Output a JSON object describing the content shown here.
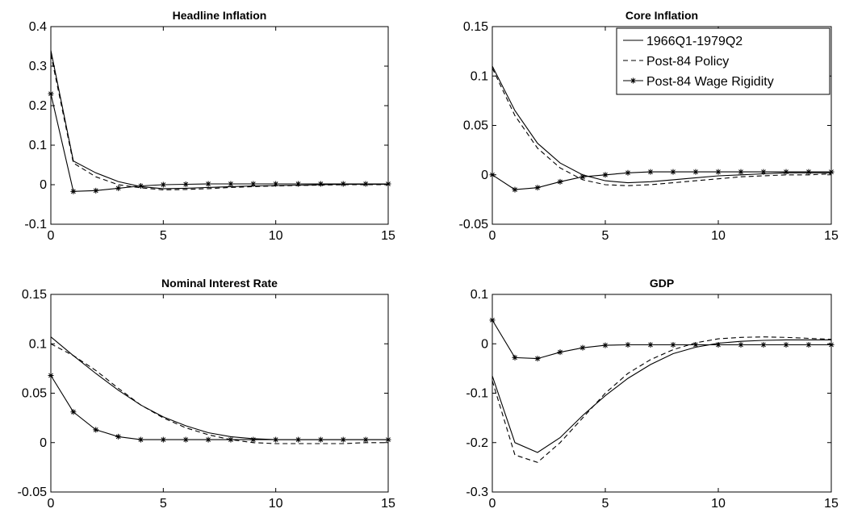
{
  "chart_data": [
    {
      "type": "line",
      "title": "Headline Inflation",
      "xlabel": "",
      "ylabel": "",
      "xlim": [
        0,
        15
      ],
      "ylim": [
        -0.1,
        0.4
      ],
      "xticks": [
        "0",
        "5",
        "10",
        "15"
      ],
      "yticks": [
        "-0.1",
        "0",
        "0.1",
        "0.2",
        "0.3",
        "0.4"
      ],
      "grid": false,
      "x": [
        0,
        1,
        2,
        3,
        4,
        5,
        6,
        7,
        8,
        9,
        10,
        11,
        12,
        13,
        14,
        15
      ],
      "series": [
        {
          "name": "1966Q1-1979Q2",
          "style": "solid",
          "values": [
            0.34,
            0.06,
            0.03,
            0.008,
            -0.005,
            -0.01,
            -0.009,
            -0.007,
            -0.005,
            -0.003,
            -0.002,
            -0.001,
            0,
            0.001,
            0.001,
            0.001
          ]
        },
        {
          "name": "Post-84 Policy",
          "style": "dashed",
          "values": [
            0.33,
            0.055,
            0.02,
            0.0,
            -0.008,
            -0.013,
            -0.012,
            -0.01,
            -0.007,
            -0.005,
            -0.003,
            -0.002,
            -0.001,
            0,
            0,
            0
          ]
        },
        {
          "name": "Post-84 Wage Rigidity",
          "style": "solid-star",
          "values": [
            0.23,
            -0.017,
            -0.015,
            -0.009,
            -0.003,
            0,
            0.001,
            0.002,
            0.002,
            0.002,
            0.002,
            0.002,
            0.002,
            0.002,
            0.002,
            0.002
          ]
        }
      ]
    },
    {
      "type": "line",
      "title": "Core Inflation",
      "xlabel": "",
      "ylabel": "",
      "xlim": [
        0,
        15
      ],
      "ylim": [
        -0.05,
        0.15
      ],
      "xticks": [
        "0",
        "5",
        "10",
        "15"
      ],
      "yticks": [
        "-0.05",
        "0",
        "0.05",
        "0.1",
        "0.15"
      ],
      "grid": false,
      "legend": "top-right",
      "x": [
        0,
        1,
        2,
        3,
        4,
        5,
        6,
        7,
        8,
        9,
        10,
        11,
        12,
        13,
        14,
        15
      ],
      "series": [
        {
          "name": "1966Q1-1979Q2",
          "style": "solid",
          "values": [
            0.11,
            0.065,
            0.032,
            0.012,
            0.0,
            -0.006,
            -0.008,
            -0.007,
            -0.005,
            -0.003,
            -0.001,
            0,
            0.001,
            0.002,
            0.002,
            0.002
          ]
        },
        {
          "name": "Post-84 Policy",
          "style": "dashed",
          "values": [
            0.108,
            0.06,
            0.027,
            0.007,
            -0.005,
            -0.01,
            -0.011,
            -0.01,
            -0.008,
            -0.006,
            -0.004,
            -0.002,
            -0.001,
            0,
            0,
            0.001
          ]
        },
        {
          "name": "Post-84 Wage Rigidity",
          "style": "solid-star",
          "values": [
            0.0,
            -0.015,
            -0.013,
            -0.007,
            -0.002,
            0.0,
            0.002,
            0.003,
            0.003,
            0.003,
            0.003,
            0.003,
            0.003,
            0.003,
            0.003,
            0.003
          ]
        }
      ]
    },
    {
      "type": "line",
      "title": "Nominal Interest Rate",
      "xlabel": "",
      "ylabel": "",
      "xlim": [
        0,
        15
      ],
      "ylim": [
        -0.05,
        0.15
      ],
      "xticks": [
        "0",
        "5",
        "10",
        "15"
      ],
      "yticks": [
        "-0.05",
        "0",
        "0.05",
        "0.1",
        "0.15"
      ],
      "grid": false,
      "x": [
        0,
        1,
        2,
        3,
        4,
        5,
        6,
        7,
        8,
        9,
        10,
        11,
        12,
        13,
        14,
        15
      ],
      "series": [
        {
          "name": "1966Q1-1979Q2",
          "style": "solid",
          "values": [
            0.107,
            0.088,
            0.07,
            0.053,
            0.038,
            0.026,
            0.017,
            0.01,
            0.006,
            0.004,
            0.003,
            0.003,
            0.003,
            0.003,
            0.003,
            0.003
          ]
        },
        {
          "name": "Post-84 Policy",
          "style": "dashed",
          "values": [
            0.1,
            0.088,
            0.073,
            0.055,
            0.038,
            0.025,
            0.015,
            0.008,
            0.003,
            0.0,
            -0.001,
            -0.001,
            -0.001,
            -0.001,
            0,
            0
          ]
        },
        {
          "name": "Post-84 Wage Rigidity",
          "style": "solid-star",
          "values": [
            0.068,
            0.031,
            0.013,
            0.006,
            0.003,
            0.003,
            0.003,
            0.003,
            0.003,
            0.003,
            0.003,
            0.003,
            0.003,
            0.003,
            0.003,
            0.003
          ]
        }
      ]
    },
    {
      "type": "line",
      "title": "GDP",
      "xlabel": "",
      "ylabel": "",
      "xlim": [
        0,
        15
      ],
      "ylim": [
        -0.3,
        0.1
      ],
      "xticks": [
        "0",
        "5",
        "10",
        "15"
      ],
      "yticks": [
        "-0.3",
        "-0.2",
        "-0.1",
        "0",
        "0.1"
      ],
      "grid": false,
      "x": [
        0,
        1,
        2,
        3,
        4,
        5,
        6,
        7,
        8,
        9,
        10,
        11,
        12,
        13,
        14,
        15
      ],
      "series": [
        {
          "name": "1966Q1-1979Q2",
          "style": "solid",
          "values": [
            -0.065,
            -0.2,
            -0.22,
            -0.19,
            -0.145,
            -0.105,
            -0.07,
            -0.042,
            -0.02,
            -0.007,
            0.001,
            0.005,
            0.007,
            0.008,
            0.008,
            0.008
          ]
        },
        {
          "name": "Post-84 Policy",
          "style": "dashed",
          "values": [
            -0.075,
            -0.225,
            -0.24,
            -0.2,
            -0.15,
            -0.1,
            -0.06,
            -0.032,
            -0.012,
            0.002,
            0.01,
            0.013,
            0.014,
            0.013,
            0.011,
            0.009
          ]
        },
        {
          "name": "Post-84 Wage Rigidity",
          "style": "solid-star",
          "values": [
            0.048,
            -0.028,
            -0.03,
            -0.017,
            -0.008,
            -0.003,
            -0.002,
            -0.002,
            -0.002,
            -0.002,
            -0.002,
            -0.002,
            -0.002,
            -0.002,
            -0.002,
            -0.002
          ]
        }
      ]
    }
  ]
}
